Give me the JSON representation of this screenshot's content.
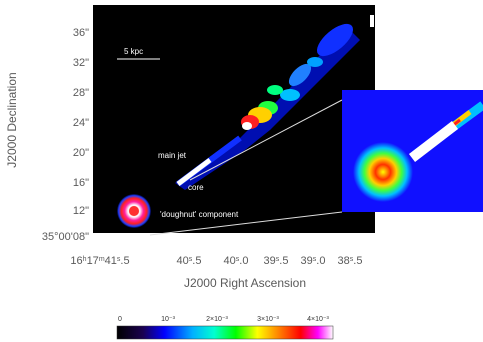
{
  "axes": {
    "xlabel": "J2000 Right Ascension",
    "ylabel": "J2000 Declination",
    "x_ticks": [
      "16h17m41s.5",
      "40s.5",
      "40s.0",
      "39s.5",
      "39s.0",
      "38s.5"
    ],
    "y_ticks": [
      "36\"",
      "32\"",
      "28\"",
      "24\"",
      "20\"",
      "16\"",
      "12\"",
      "35°00'08\""
    ]
  },
  "annotations": {
    "scale": "5 kpc",
    "main_jet": "main jet",
    "core": "core",
    "doughnut": "'doughnut' component"
  },
  "colorbar": {
    "labels": [
      "0",
      "10⁻³",
      "2×10⁻³",
      "3×10⁻³",
      "4×10⁻³"
    ]
  },
  "colors": {
    "background": "#000000",
    "inset_background": "#1010ff",
    "page": "#ffffff"
  }
}
